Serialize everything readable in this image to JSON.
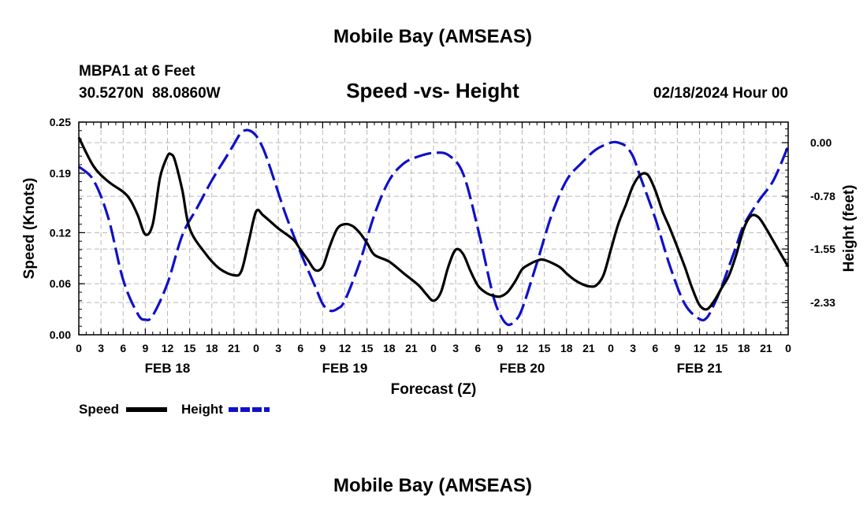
{
  "chart_data": {
    "type": "line",
    "title": "Mobile Bay (AMSEAS)",
    "subtitle": "Speed -vs- Height",
    "station": "MBPA1 at 6 Feet",
    "coords": "30.5270N  88.0860W",
    "date": "02/18/2024 Hour 00",
    "xlabel": "Forecast (Z)",
    "ylabel_left": "Speed (Knots)",
    "ylabel_right": "Height (feet)",
    "xlim": [
      0,
      96
    ],
    "ylim_left": [
      0,
      0.25
    ],
    "ylim_right": [
      -2.8,
      0.3
    ],
    "x_ticks": [
      0,
      3,
      6,
      9,
      12,
      15,
      18,
      21,
      24,
      27,
      30,
      33,
      36,
      39,
      42,
      45,
      48,
      51,
      54,
      57,
      60,
      63,
      66,
      69,
      72,
      75,
      78,
      81,
      84,
      87,
      90,
      93,
      96
    ],
    "x_tick_labels": [
      "0",
      "3",
      "6",
      "9",
      "12",
      "15",
      "18",
      "21",
      "0",
      "3",
      "6",
      "9",
      "12",
      "15",
      "18",
      "21",
      "0",
      "3",
      "6",
      "9",
      "12",
      "15",
      "18",
      "21",
      "0",
      "3",
      "6",
      "9",
      "12",
      "15",
      "18",
      "21",
      "0"
    ],
    "day_labels": [
      {
        "x": 12,
        "label": "FEB 18"
      },
      {
        "x": 36,
        "label": "FEB 19"
      },
      {
        "x": 60,
        "label": "FEB 20"
      },
      {
        "x": 84,
        "label": "FEB 21"
      }
    ],
    "y_left_ticks": [
      0.0,
      0.06,
      0.12,
      0.19,
      0.25
    ],
    "y_left_tick_labels": [
      "0.00",
      "0.06",
      "0.12",
      "0.19",
      "0.25"
    ],
    "y_right_ticks": [
      0.0,
      -0.78,
      -1.55,
      -2.33
    ],
    "y_right_tick_labels": [
      "0.00",
      "-0.78",
      "-1.55",
      "-2.33"
    ],
    "grid": true,
    "legend": "bottom-left",
    "series": [
      {
        "name": "Speed",
        "axis": "left",
        "color": "#000000",
        "dash": "solid",
        "x": [
          0,
          2,
          4,
          6,
          7,
          8,
          9,
          10,
          11,
          12,
          12.5,
          13,
          14,
          15,
          17,
          19,
          21,
          22,
          23,
          24,
          25,
          27,
          29,
          30,
          31,
          32,
          33,
          34,
          35,
          36,
          37,
          38,
          39,
          40,
          42,
          44,
          46,
          47,
          48,
          49,
          50,
          51,
          52,
          53,
          54,
          55,
          56,
          57,
          58,
          59,
          60,
          61,
          62,
          63,
          65,
          66,
          67,
          68,
          69,
          70,
          71,
          72,
          73,
          74,
          75,
          76,
          77,
          78,
          79,
          80,
          81,
          82,
          83,
          84,
          85,
          86,
          87,
          88,
          89,
          90,
          91,
          92,
          93,
          94,
          96
        ],
        "values": [
          0.232,
          0.198,
          0.18,
          0.168,
          0.158,
          0.14,
          0.118,
          0.13,
          0.185,
          0.21,
          0.212,
          0.205,
          0.17,
          0.125,
          0.097,
          0.078,
          0.07,
          0.075,
          0.11,
          0.145,
          0.14,
          0.125,
          0.112,
          0.1,
          0.088,
          0.076,
          0.08,
          0.105,
          0.125,
          0.13,
          0.128,
          0.12,
          0.108,
          0.094,
          0.086,
          0.072,
          0.058,
          0.048,
          0.04,
          0.05,
          0.08,
          0.1,
          0.095,
          0.075,
          0.058,
          0.05,
          0.046,
          0.045,
          0.05,
          0.062,
          0.077,
          0.083,
          0.087,
          0.088,
          0.08,
          0.072,
          0.065,
          0.06,
          0.057,
          0.058,
          0.07,
          0.1,
          0.13,
          0.152,
          0.175,
          0.188,
          0.188,
          0.17,
          0.145,
          0.125,
          0.103,
          0.08,
          0.055,
          0.035,
          0.03,
          0.04,
          0.055,
          0.07,
          0.095,
          0.125,
          0.14,
          0.138,
          0.125,
          0.11,
          0.08
        ]
      },
      {
        "name": "Height",
        "axis": "right",
        "color": "#1010c8",
        "dash": "dashed",
        "x": [
          0,
          2,
          4,
          6,
          8,
          9,
          10,
          12,
          14,
          16,
          18,
          20,
          21,
          22,
          23,
          24,
          25,
          26,
          28,
          30,
          32,
          33,
          34,
          35,
          36,
          38,
          40,
          42,
          44,
          46,
          48,
          50,
          52,
          54,
          56,
          57,
          58,
          59,
          60,
          62,
          64,
          66,
          68,
          70,
          72,
          73,
          74,
          75,
          76,
          78,
          80,
          82,
          84,
          85,
          86,
          87,
          88,
          89,
          90,
          92,
          94,
          96
        ],
        "values": [
          -0.35,
          -0.55,
          -1.1,
          -2.0,
          -2.5,
          -2.58,
          -2.52,
          -2.05,
          -1.35,
          -0.95,
          -0.55,
          -0.2,
          -0.02,
          0.15,
          0.18,
          0.1,
          -0.1,
          -0.4,
          -1.05,
          -1.6,
          -2.1,
          -2.35,
          -2.45,
          -2.42,
          -2.3,
          -1.75,
          -1.05,
          -0.55,
          -0.3,
          -0.2,
          -0.15,
          -0.18,
          -0.45,
          -1.25,
          -2.2,
          -2.5,
          -2.65,
          -2.6,
          -2.42,
          -1.75,
          -1.05,
          -0.55,
          -0.3,
          -0.1,
          0.0,
          0.0,
          -0.05,
          -0.2,
          -0.5,
          -1.1,
          -1.8,
          -2.35,
          -2.57,
          -2.55,
          -2.35,
          -2.1,
          -1.8,
          -1.5,
          -1.2,
          -0.85,
          -0.55,
          -0.05
        ]
      }
    ]
  }
}
